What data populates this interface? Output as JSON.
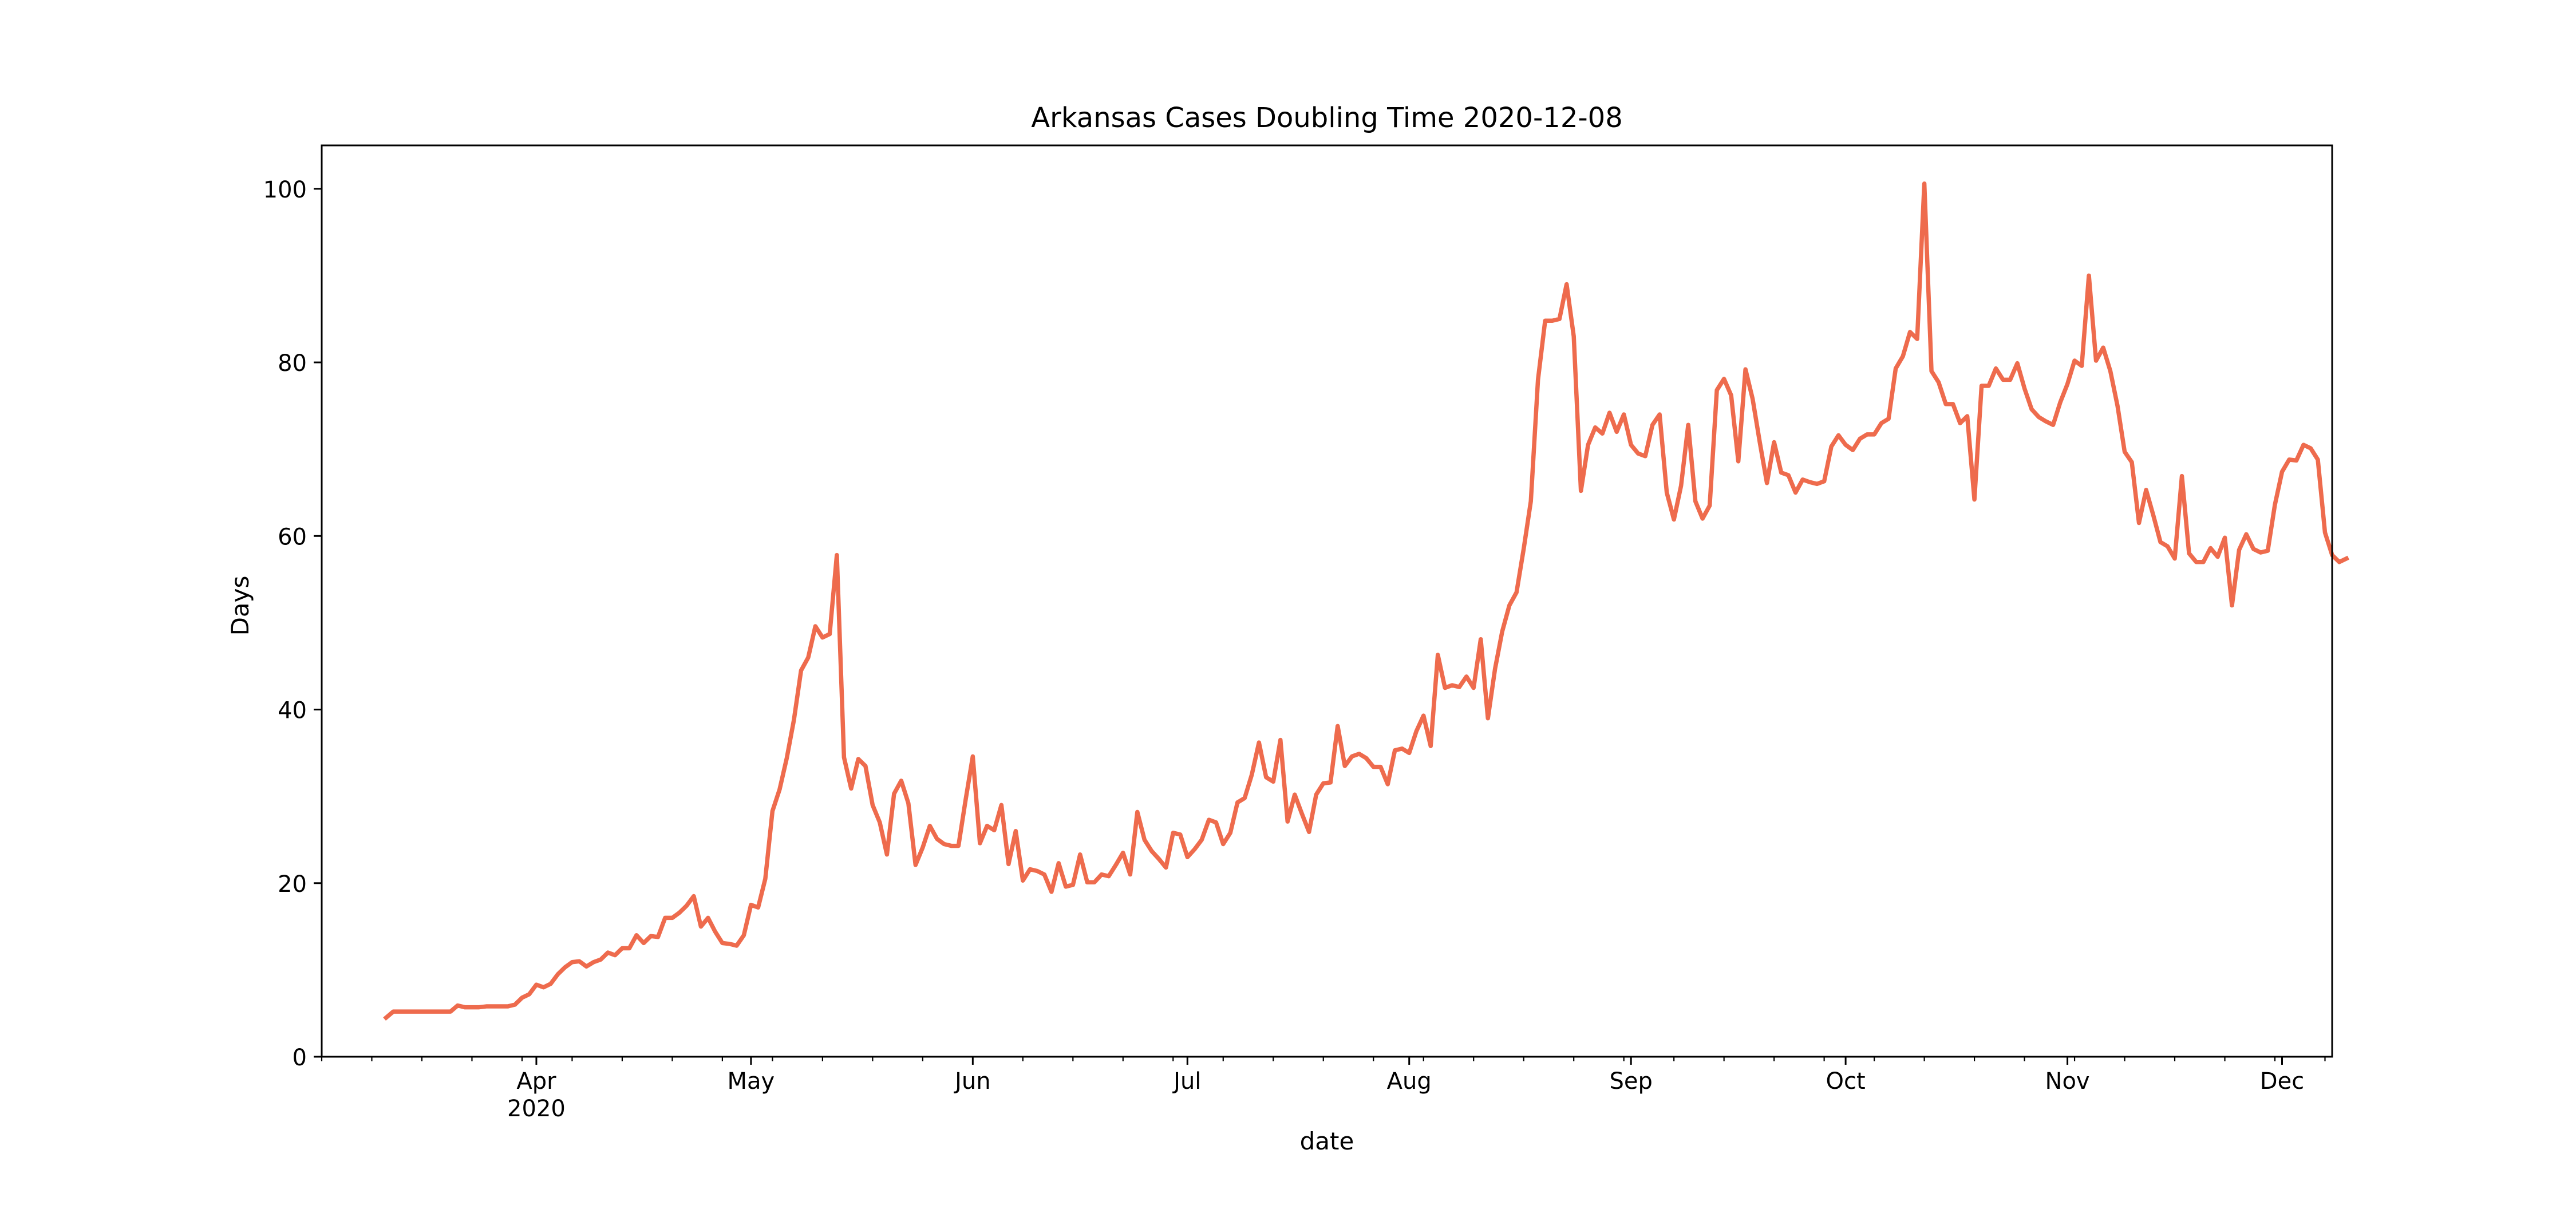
{
  "chart_data": {
    "type": "line",
    "title": "Arkansas Cases Doubling Time 2020-12-08",
    "xlabel": "date",
    "ylabel": "Days",
    "x_start": "2020-03-11",
    "x_end": "2020-12-08",
    "xlim": [
      "2020-03-02",
      "2020-12-08"
    ],
    "ylim": [
      0,
      105
    ],
    "yticks": [
      0,
      20,
      40,
      60,
      80,
      100
    ],
    "xticks": [
      {
        "date": "2020-04-01",
        "label": "Apr",
        "sublabel": "2020"
      },
      {
        "date": "2020-05-01",
        "label": "May",
        "sublabel": ""
      },
      {
        "date": "2020-06-01",
        "label": "Jun",
        "sublabel": ""
      },
      {
        "date": "2020-07-01",
        "label": "Jul",
        "sublabel": ""
      },
      {
        "date": "2020-08-01",
        "label": "Aug",
        "sublabel": ""
      },
      {
        "date": "2020-09-01",
        "label": "Sep",
        "sublabel": ""
      },
      {
        "date": "2020-10-01",
        "label": "Oct",
        "sublabel": ""
      },
      {
        "date": "2020-11-01",
        "label": "Nov",
        "sublabel": ""
      },
      {
        "date": "2020-12-01",
        "label": "Dec",
        "sublabel": ""
      }
    ],
    "minor_ticks": "weekly",
    "grid": false,
    "legend": "none",
    "line_color": "#ee6b4d",
    "series": [
      {
        "values": [
          4.5,
          5.2,
          5.2,
          5.2,
          5.2,
          5.2,
          5.2,
          5.2,
          5.2,
          5.2,
          5.9,
          5.7,
          5.7,
          5.7,
          5.8,
          5.8,
          5.8,
          5.8,
          6.0,
          6.8,
          7.2,
          8.3,
          8.0,
          8.4,
          9.5,
          10.3,
          10.9,
          11.0,
          10.4,
          10.9,
          11.2,
          12.0,
          11.7,
          12.5,
          12.5,
          14.0,
          13.1,
          13.9,
          13.8,
          16.0,
          16.0,
          16.6,
          17.4,
          18.5,
          15.0,
          16.0,
          14.4,
          13.1,
          13.0,
          12.8,
          14.0,
          17.5,
          17.2,
          20.5,
          28.3,
          30.8,
          34.4,
          38.8,
          44.5,
          46.0,
          49.6,
          48.3,
          48.7,
          57.8,
          34.5,
          30.9,
          34.3,
          33.5,
          29.0,
          27.0,
          23.3,
          30.3,
          31.8,
          29.2,
          22.1,
          24.1,
          26.6,
          25.1,
          24.5,
          24.3,
          24.3,
          29.6,
          34.6,
          24.6,
          26.6,
          26.1,
          29.0,
          22.2,
          26.0,
          20.3,
          21.6,
          21.4,
          21.0,
          19.0,
          22.3,
          19.6,
          19.8,
          23.3,
          20.1,
          20.1,
          21.0,
          20.8,
          22.1,
          23.5,
          21.0,
          28.2,
          25.0,
          23.7,
          22.8,
          21.8,
          25.8,
          25.6,
          23.0,
          23.9,
          25.0,
          27.3,
          27.0,
          24.5,
          25.8,
          29.3,
          29.8,
          32.5,
          36.2,
          32.2,
          31.7,
          36.5,
          27.1,
          30.2,
          28.0,
          25.9,
          30.2,
          31.5,
          31.6,
          38.1,
          33.5,
          34.6,
          34.9,
          34.4,
          33.4,
          33.4,
          31.4,
          35.3,
          35.5,
          35.0,
          37.5,
          39.3,
          35.8,
          46.3,
          42.5,
          42.8,
          42.6,
          43.8,
          42.5,
          48.1,
          39.0,
          44.7,
          49.0,
          52.0,
          53.5,
          58.5,
          64.0,
          78.0,
          84.8,
          84.8,
          85.0,
          89.0,
          83.0,
          65.2,
          70.5,
          72.5,
          71.8,
          74.2,
          72.0,
          74.0,
          70.5,
          69.5,
          69.2,
          72.8,
          74.0,
          65.0,
          61.9,
          65.8,
          72.8,
          64.0,
          62.0,
          63.5,
          76.8,
          78.1,
          76.2,
          68.6,
          79.2,
          75.8,
          70.8,
          66.1,
          70.8,
          67.3,
          67.0,
          65.0,
          66.5,
          66.2,
          66.0,
          66.3,
          70.3,
          71.6,
          70.5,
          69.9,
          71.2,
          71.7,
          71.7,
          73.0,
          73.5,
          79.3,
          80.7,
          83.5,
          82.7,
          100.6,
          79.0,
          77.7,
          75.2,
          75.2,
          73.0,
          73.8,
          64.2,
          77.3,
          77.3,
          79.3,
          78.0,
          78.0,
          79.9,
          77.0,
          74.6,
          73.7,
          73.2,
          72.8,
          75.4,
          77.5,
          80.2,
          79.6,
          90.0,
          80.2,
          81.7,
          79.0,
          75.0,
          69.7,
          68.5,
          61.5,
          65.3,
          62.4,
          59.3,
          58.8,
          57.4,
          66.9,
          58.0,
          57.0,
          57.0,
          58.6,
          57.6,
          59.8,
          52.0,
          58.4,
          60.2,
          58.5,
          58.1,
          58.3,
          63.6,
          67.4,
          68.8,
          68.7,
          70.5,
          70.1,
          68.8,
          60.4,
          57.8,
          57.0,
          57.4
        ]
      }
    ]
  }
}
